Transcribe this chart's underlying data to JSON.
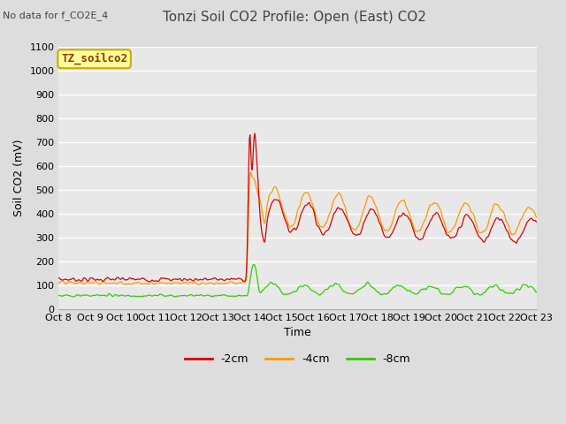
{
  "title": "Tonzi Soil CO2 Profile: Open (East) CO2",
  "no_data_label": "No data for f_CO2E_4",
  "legend_box_label": "TZ_soilco2",
  "ylabel": "Soil CO2 (mV)",
  "xlabel": "Time",
  "ylim": [
    0,
    1100
  ],
  "yticks": [
    0,
    100,
    200,
    300,
    400,
    500,
    600,
    700,
    800,
    900,
    1000,
    1100
  ],
  "xtick_labels": [
    "Oct 8",
    "Oct 9",
    "Oct 10",
    "Oct 11",
    "Oct 12",
    "Oct 13",
    "Oct 14",
    "Oct 15",
    "Oct 16",
    "Oct 17",
    "Oct 18",
    "Oct 19",
    "Oct 20",
    "Oct 21",
    "Oct 22",
    "Oct 23"
  ],
  "line_colors": {
    "m2cm": "#dd0000",
    "m4cm": "#ff9900",
    "m8cm": "#33cc00"
  },
  "line_labels": [
    "-2cm",
    "-4cm",
    "-8cm"
  ],
  "fig_bg_color": "#dddddd",
  "plot_bg_color": "#e8e8e8",
  "grid_color": "#ffffff",
  "legend_box_color": "#ffff99",
  "legend_box_edge": "#ccaa00",
  "title_fontsize": 11,
  "no_data_fontsize": 8,
  "ylabel_fontsize": 9,
  "xlabel_fontsize": 9,
  "tick_fontsize": 8,
  "legend_fontsize": 9
}
